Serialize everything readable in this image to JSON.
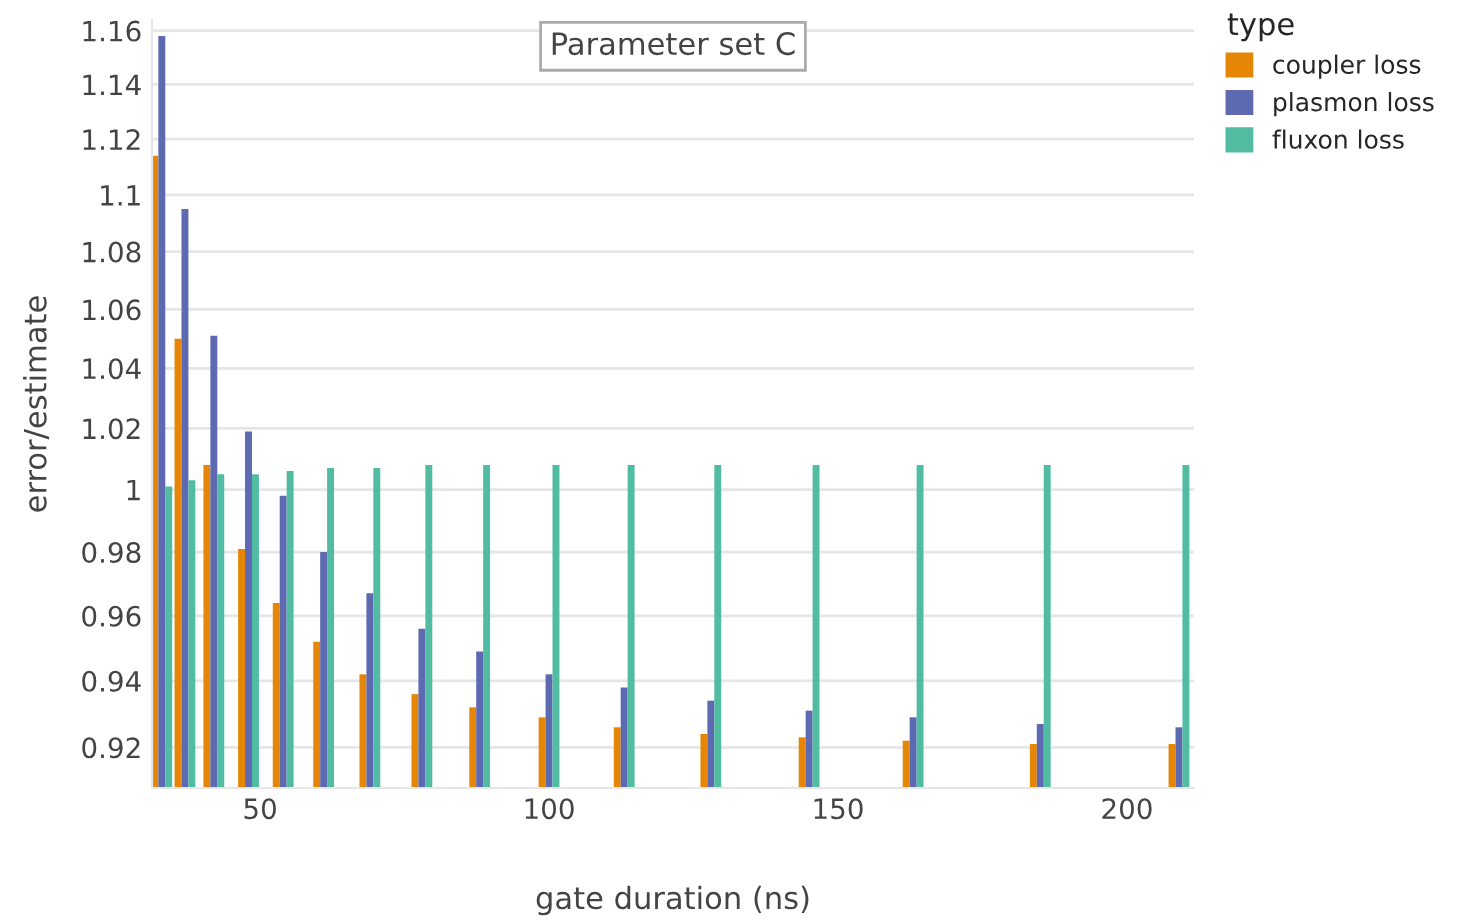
{
  "chart_data": {
    "type": "bar",
    "title": "Parameter set C",
    "xlabel": "gate duration (ns)",
    "ylabel": "error/estimate",
    "legend_title": "type",
    "x": [
      33,
      37,
      42,
      48,
      54,
      61,
      69,
      78,
      88,
      100,
      113,
      128,
      145,
      163,
      185,
      209
    ],
    "series": [
      {
        "name": "coupler loss",
        "color": "#e58606",
        "values": [
          1.114,
          1.05,
          1.008,
          0.981,
          0.964,
          0.952,
          0.942,
          0.936,
          0.932,
          0.929,
          0.926,
          0.924,
          0.923,
          0.922,
          0.921,
          0.921
        ]
      },
      {
        "name": "plasmon loss",
        "color": "#5d69b1",
        "values": [
          1.158,
          1.095,
          1.051,
          1.019,
          0.998,
          0.98,
          0.967,
          0.956,
          0.949,
          0.942,
          0.938,
          0.934,
          0.931,
          0.929,
          0.927,
          0.926
        ]
      },
      {
        "name": "fluxon loss",
        "color": "#52bca3",
        "values": [
          1.001,
          1.003,
          1.005,
          1.005,
          1.006,
          1.007,
          1.007,
          1.008,
          1.008,
          1.008,
          1.008,
          1.008,
          1.008,
          1.008,
          1.008,
          1.008
        ]
      }
    ],
    "log": "y",
    "xlim": [
      31.3,
      211.6
    ],
    "ylim": [
      0.908,
      1.164
    ],
    "xticks": [
      50,
      100,
      150,
      200
    ],
    "yticks": [
      0.92,
      0.94,
      0.96,
      0.98,
      1,
      1.02,
      1.04,
      1.06,
      1.08,
      1.1,
      1.12,
      1.14,
      1.16
    ],
    "grid": "y",
    "legend": "top right"
  }
}
